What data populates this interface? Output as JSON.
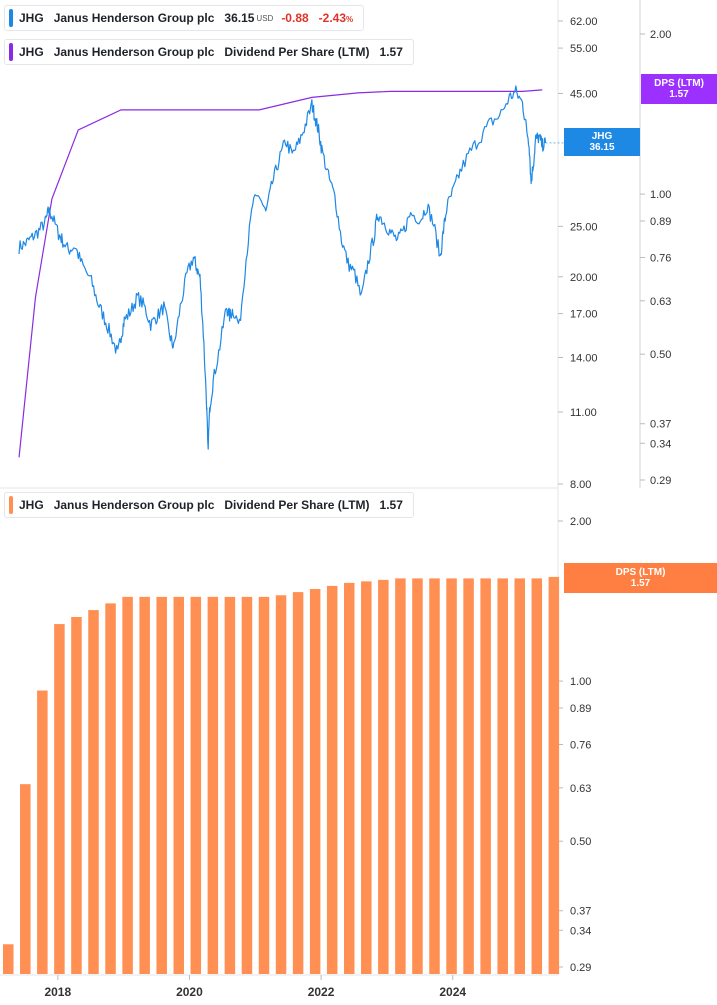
{
  "colors": {
    "price_line": "#1e88e5",
    "dps_line": "#8a2be2",
    "dps_badge": "#9b30ff",
    "bar": "#ff8f52",
    "bar_badge": "#ff7f43",
    "negative": "#e0332b"
  },
  "legend_price": {
    "ticker": "JHG",
    "name": "Janus Henderson Group plc",
    "last": "36.15",
    "currency": "USD",
    "change": "-0.88",
    "change_pct": "-2.43",
    "pct_sign": "%"
  },
  "legend_dps_top": {
    "ticker": "JHG",
    "name": "Janus Henderson Group plc",
    "metric": "Dividend Per Share (LTM)",
    "value": "1.57"
  },
  "legend_dps_bottom": {
    "ticker": "JHG",
    "name": "Janus Henderson Group plc",
    "metric": "Dividend Per Share (LTM)",
    "value": "1.57"
  },
  "badges": {
    "price": {
      "label": "JHG",
      "value": "36.15"
    },
    "dps_top": {
      "label": "DPS (LTM)",
      "value": "1.57"
    },
    "dps_bottom": {
      "label": "DPS (LTM)",
      "value": "1.57"
    }
  },
  "chart_data": [
    {
      "type": "line",
      "title": "JHG price (USD)",
      "scale": "log",
      "ylim": [
        7.9,
        70
      ],
      "ytick_labels": [
        "62.00",
        "55.00",
        "45.00",
        "25.00",
        "20.00",
        "17.00",
        "14.00",
        "11.00",
        "8.00"
      ],
      "ytick_values": [
        62,
        55,
        45,
        25,
        20,
        17,
        14,
        11,
        8
      ],
      "x_range": [
        2017.35,
        2025.35
      ],
      "series": [
        {
          "name": "JHG",
          "x": [
            2017.35,
            2017.45,
            2017.55,
            2017.65,
            2017.75,
            2017.8,
            2017.85,
            2017.95,
            2018.0,
            2018.1,
            2018.2,
            2018.3,
            2018.45,
            2018.55,
            2018.65,
            2018.75,
            2018.85,
            2018.9,
            2018.95,
            2019.05,
            2019.15,
            2019.25,
            2019.35,
            2019.45,
            2019.55,
            2019.65,
            2019.7,
            2019.8,
            2019.9,
            2020.0,
            2020.05,
            2020.1,
            2020.15,
            2020.2,
            2020.22,
            2020.25,
            2020.3,
            2020.4,
            2020.5,
            2020.55,
            2020.6,
            2020.7,
            2020.8,
            2020.9,
            2021.0,
            2021.1,
            2021.2,
            2021.3,
            2021.4,
            2021.5,
            2021.6,
            2021.7,
            2021.8,
            2021.85,
            2021.9,
            2021.95,
            2022.05,
            2022.15,
            2022.25,
            2022.35,
            2022.45,
            2022.55,
            2022.65,
            2022.75,
            2022.8,
            2022.9,
            2023.0,
            2023.1,
            2023.2,
            2023.3,
            2023.45,
            2023.55,
            2023.65,
            2023.75,
            2023.8,
            2023.85,
            2023.95,
            2024.05,
            2024.2,
            2024.35,
            2024.5,
            2024.65,
            2024.8,
            2024.9,
            2025.0,
            2025.05,
            2025.1,
            2025.13,
            2025.17,
            2025.2,
            2025.25,
            2025.3,
            2025.35
          ],
          "values": [
            22.8,
            23.2,
            23.8,
            24.5,
            25.5,
            26.8,
            26.2,
            24.2,
            23.6,
            22.5,
            22.9,
            21.2,
            19.6,
            17.8,
            16.6,
            15.4,
            14.2,
            15.4,
            16.5,
            17.2,
            18.3,
            17.6,
            16.2,
            16.8,
            17.5,
            15.3,
            14.6,
            17.5,
            20.2,
            21.8,
            20.8,
            19.9,
            15.6,
            11.4,
            9.3,
            11.3,
            12.6,
            14.7,
            17.5,
            16.8,
            17.3,
            16.1,
            21.7,
            27.6,
            28.7,
            26.5,
            30.3,
            33.5,
            36.5,
            34.3,
            36.1,
            39.1,
            42.8,
            40.5,
            38.2,
            35.1,
            31.2,
            28.5,
            23.6,
            21.2,
            20.3,
            18.2,
            21.2,
            24.1,
            26.5,
            25.4,
            24.3,
            23.5,
            24.6,
            26.5,
            25.8,
            27.4,
            25.2,
            21.8,
            24.6,
            27.2,
            29.3,
            31.8,
            34.7,
            36.9,
            39.4,
            40.7,
            44.2,
            45.3,
            43.1,
            39.2,
            36.2,
            30.4,
            33.4,
            36.8,
            37.1,
            35.8,
            36.15
          ]
        }
      ]
    },
    {
      "type": "line",
      "title": "Dividend Per Share (LTM)",
      "scale": "log",
      "ylim": [
        0.28,
        2.2
      ],
      "ytick_labels": [
        "2.00",
        "1.00",
        "0.89",
        "0.76",
        "0.63",
        "0.50",
        "0.37",
        "0.34",
        "0.29"
      ],
      "ytick_values": [
        2.0,
        1.0,
        0.89,
        0.76,
        0.63,
        0.5,
        0.37,
        0.34,
        0.29
      ],
      "x_range": [
        2017.35,
        2025.35
      ],
      "series": [
        {
          "name": "DPS (LTM)",
          "x": [
            2017.35,
            2017.6,
            2017.85,
            2018.25,
            2018.9,
            2020.0,
            2021.0,
            2021.8,
            2022.5,
            2023.0,
            2024.0,
            2025.0,
            2025.3
          ],
          "values": [
            0.32,
            0.64,
            0.98,
            1.32,
            1.44,
            1.44,
            1.44,
            1.52,
            1.55,
            1.56,
            1.56,
            1.56,
            1.57
          ]
        }
      ]
    },
    {
      "type": "bar",
      "title": "Dividend Per Share (LTM)",
      "scale": "log",
      "ylim": [
        0.28,
        2.2
      ],
      "ytick_labels": [
        "2.00",
        "1.00",
        "0.89",
        "0.76",
        "0.63",
        "0.50",
        "0.37",
        "0.34",
        "0.29"
      ],
      "ytick_values": [
        2.0,
        1.0,
        0.89,
        0.76,
        0.63,
        0.5,
        0.37,
        0.34,
        0.29
      ],
      "xtick_labels": [
        "2018",
        "2020",
        "2022",
        "2024"
      ],
      "categories": [
        "2017Q1",
        "2017Q2",
        "2017Q3",
        "2017Q4",
        "2018Q1",
        "2018Q2",
        "2018Q3",
        "2018Q4",
        "2019Q1",
        "2019Q2",
        "2019Q3",
        "2019Q4",
        "2020Q1",
        "2020Q2",
        "2020Q3",
        "2020Q4",
        "2021Q1",
        "2021Q2",
        "2021Q3",
        "2021Q4",
        "2022Q1",
        "2022Q2",
        "2022Q3",
        "2022Q4",
        "2023Q1",
        "2023Q2",
        "2023Q3",
        "2023Q4",
        "2024Q1",
        "2024Q2",
        "2024Q3",
        "2024Q4",
        "2025Q1"
      ],
      "values": [
        0.32,
        0.64,
        0.96,
        1.28,
        1.32,
        1.36,
        1.4,
        1.44,
        1.44,
        1.44,
        1.44,
        1.44,
        1.44,
        1.44,
        1.44,
        1.44,
        1.45,
        1.47,
        1.49,
        1.51,
        1.53,
        1.54,
        1.55,
        1.56,
        1.56,
        1.56,
        1.56,
        1.56,
        1.56,
        1.56,
        1.56,
        1.56,
        1.57
      ]
    }
  ]
}
